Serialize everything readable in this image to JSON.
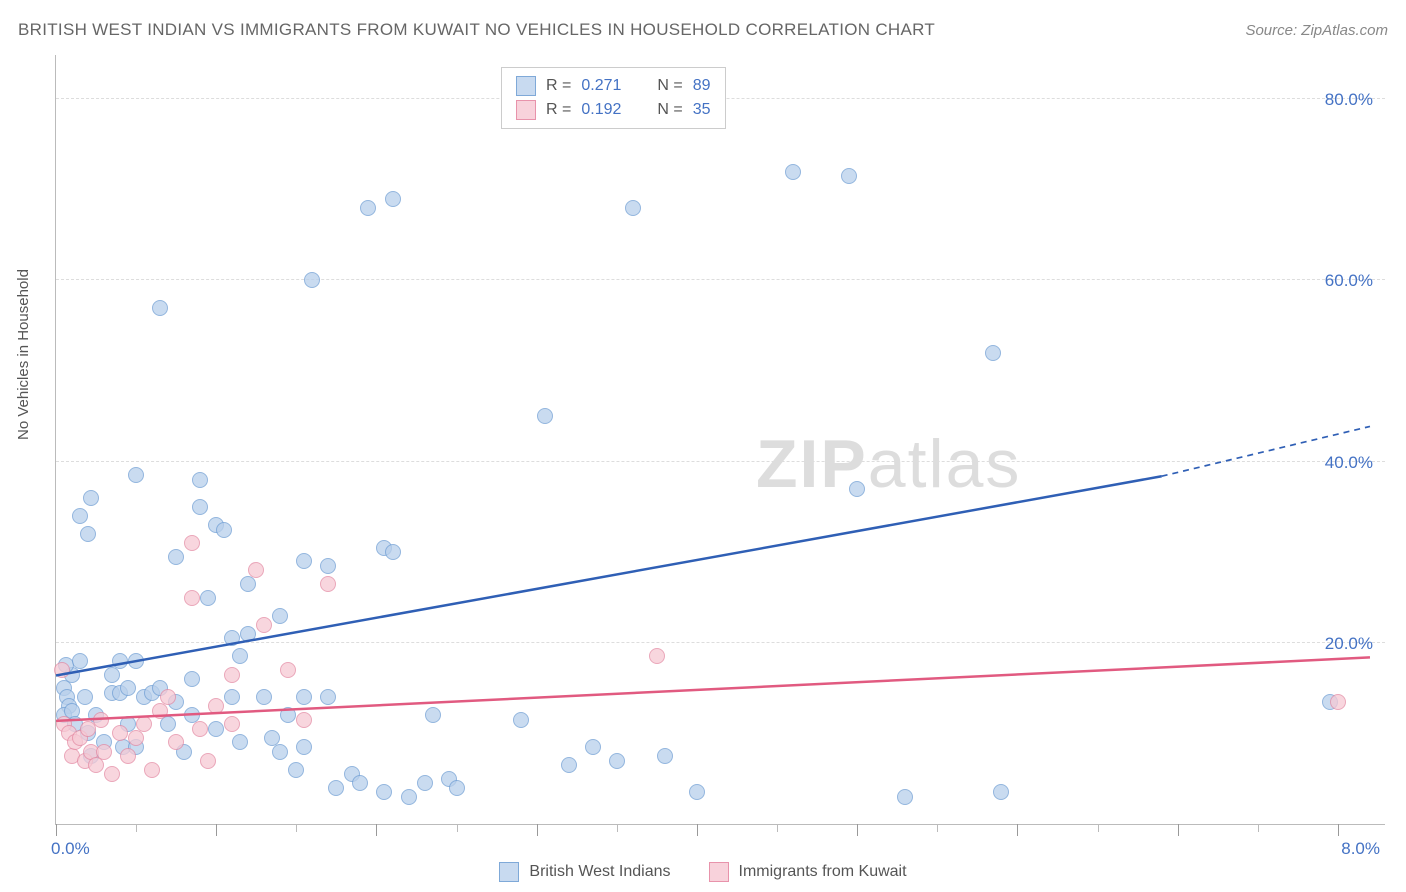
{
  "header": {
    "title": "BRITISH WEST INDIAN VS IMMIGRANTS FROM KUWAIT NO VEHICLES IN HOUSEHOLD CORRELATION CHART",
    "source": "Source: ZipAtlas.com"
  },
  "chart": {
    "type": "scatter",
    "ylabel": "No Vehicles in Household",
    "watermark": {
      "bold": "ZIP",
      "rest": "atlas"
    },
    "background_color": "#ffffff",
    "grid_color": "#dddddd",
    "axis_color": "#bbbbbb",
    "label_color": "#555555",
    "value_color": "#4472c4",
    "xlim": [
      0,
      8.3
    ],
    "ylim": [
      0,
      85
    ],
    "ytick_positions": [
      20,
      40,
      60,
      80
    ],
    "ytick_labels": [
      "20.0%",
      "40.0%",
      "60.0%",
      "80.0%"
    ],
    "xtick_positions": [
      0,
      1,
      2,
      3,
      4,
      5,
      6,
      7,
      8
    ],
    "xaxis_left_label": "0.0%",
    "xaxis_right_label": "8.0%",
    "marker_radius": 8,
    "marker_stroke_width": 1.2,
    "trend_line_width": 2.5,
    "series": [
      {
        "name": "British West Indians",
        "fill_color": "#b8cfeb",
        "stroke_color": "#6f9ed4",
        "swatch_fill": "#c8daf0",
        "swatch_stroke": "#7fa9d8",
        "line_color": "#2f5fb5",
        "stat": {
          "R": "0.271",
          "N": "89"
        },
        "trend": {
          "x1": 0.0,
          "y1": 16.5,
          "x2": 6.9,
          "y2": 38.5,
          "x2_dash": 8.2,
          "y2_dash": 44.0
        },
        "points": [
          [
            0.05,
            15.0
          ],
          [
            0.07,
            14.0
          ],
          [
            0.08,
            13.0
          ],
          [
            0.05,
            12.0
          ],
          [
            0.1,
            16.5
          ],
          [
            0.1,
            12.5
          ],
          [
            0.12,
            11.0
          ],
          [
            0.06,
            17.5
          ],
          [
            0.15,
            18.0
          ],
          [
            0.15,
            34.0
          ],
          [
            0.18,
            14.0
          ],
          [
            0.2,
            32.0
          ],
          [
            0.2,
            10.0
          ],
          [
            0.22,
            36.0
          ],
          [
            0.22,
            7.5
          ],
          [
            0.25,
            12.0
          ],
          [
            0.3,
            9.0
          ],
          [
            0.35,
            16.5
          ],
          [
            0.35,
            14.5
          ],
          [
            0.4,
            18.0
          ],
          [
            0.4,
            14.5
          ],
          [
            0.42,
            8.5
          ],
          [
            0.45,
            15.0
          ],
          [
            0.45,
            11.0
          ],
          [
            0.5,
            18.0
          ],
          [
            0.5,
            8.5
          ],
          [
            0.5,
            38.5
          ],
          [
            0.55,
            14.0
          ],
          [
            0.6,
            14.5
          ],
          [
            0.65,
            15.0
          ],
          [
            0.65,
            57.0
          ],
          [
            0.7,
            11.0
          ],
          [
            0.75,
            29.5
          ],
          [
            0.75,
            13.5
          ],
          [
            0.8,
            8.0
          ],
          [
            0.85,
            16.0
          ],
          [
            0.85,
            12.0
          ],
          [
            0.9,
            35.0
          ],
          [
            0.9,
            38.0
          ],
          [
            0.95,
            25.0
          ],
          [
            1.0,
            10.5
          ],
          [
            1.0,
            33.0
          ],
          [
            1.05,
            32.5
          ],
          [
            1.1,
            20.5
          ],
          [
            1.1,
            14.0
          ],
          [
            1.15,
            9.0
          ],
          [
            1.15,
            18.5
          ],
          [
            1.2,
            26.5
          ],
          [
            1.2,
            21.0
          ],
          [
            1.3,
            14.0
          ],
          [
            1.35,
            9.5
          ],
          [
            1.4,
            23.0
          ],
          [
            1.4,
            8.0
          ],
          [
            1.45,
            12.0
          ],
          [
            1.5,
            6.0
          ],
          [
            1.55,
            14.0
          ],
          [
            1.55,
            8.5
          ],
          [
            1.55,
            29.0
          ],
          [
            1.6,
            60.0
          ],
          [
            1.7,
            14.0
          ],
          [
            1.75,
            4.0
          ],
          [
            1.7,
            28.5
          ],
          [
            1.85,
            5.5
          ],
          [
            1.9,
            4.5
          ],
          [
            1.95,
            68.0
          ],
          [
            2.05,
            3.5
          ],
          [
            2.05,
            30.5
          ],
          [
            2.1,
            69.0
          ],
          [
            2.1,
            30.0
          ],
          [
            2.2,
            3.0
          ],
          [
            2.3,
            4.5
          ],
          [
            2.35,
            12.0
          ],
          [
            2.45,
            5.0
          ],
          [
            2.5,
            4.0
          ],
          [
            2.9,
            11.5
          ],
          [
            3.05,
            45.0
          ],
          [
            3.2,
            6.5
          ],
          [
            3.35,
            8.5
          ],
          [
            3.5,
            7.0
          ],
          [
            3.6,
            68.0
          ],
          [
            3.8,
            7.5
          ],
          [
            4.0,
            3.5
          ],
          [
            4.6,
            72.0
          ],
          [
            4.95,
            71.5
          ],
          [
            5.0,
            37.0
          ],
          [
            5.3,
            3.0
          ],
          [
            5.85,
            52.0
          ],
          [
            5.9,
            3.5
          ],
          [
            7.95,
            13.5
          ]
        ]
      },
      {
        "name": "Immigrants from Kuwait",
        "fill_color": "#f6c9d4",
        "stroke_color": "#e48aa3",
        "swatch_fill": "#f8d2db",
        "swatch_stroke": "#e893ab",
        "line_color": "#e15a80",
        "stat": {
          "R": "0.192",
          "N": "35"
        },
        "trend": {
          "x1": 0.0,
          "y1": 11.5,
          "x2": 8.2,
          "y2": 18.5
        },
        "points": [
          [
            0.04,
            17.0
          ],
          [
            0.05,
            11.0
          ],
          [
            0.08,
            10.0
          ],
          [
            0.1,
            7.5
          ],
          [
            0.12,
            9.0
          ],
          [
            0.15,
            9.5
          ],
          [
            0.18,
            7.0
          ],
          [
            0.2,
            10.5
          ],
          [
            0.22,
            8.0
          ],
          [
            0.25,
            6.5
          ],
          [
            0.28,
            11.5
          ],
          [
            0.3,
            8.0
          ],
          [
            0.35,
            5.5
          ],
          [
            0.4,
            10.0
          ],
          [
            0.45,
            7.5
          ],
          [
            0.5,
            9.5
          ],
          [
            0.55,
            11.0
          ],
          [
            0.6,
            6.0
          ],
          [
            0.65,
            12.5
          ],
          [
            0.7,
            14.0
          ],
          [
            0.75,
            9.0
          ],
          [
            0.85,
            25.0
          ],
          [
            0.85,
            31.0
          ],
          [
            0.9,
            10.5
          ],
          [
            0.95,
            7.0
          ],
          [
            1.0,
            13.0
          ],
          [
            1.1,
            11.0
          ],
          [
            1.1,
            16.5
          ],
          [
            1.25,
            28.0
          ],
          [
            1.3,
            22.0
          ],
          [
            1.45,
            17.0
          ],
          [
            1.55,
            11.5
          ],
          [
            1.7,
            26.5
          ],
          [
            3.75,
            18.5
          ],
          [
            8.0,
            13.5
          ]
        ]
      }
    ],
    "stat_legend_labels": {
      "R": "R =",
      "N": "N ="
    },
    "series_legend": [
      "British West Indians",
      "Immigrants from Kuwait"
    ]
  }
}
